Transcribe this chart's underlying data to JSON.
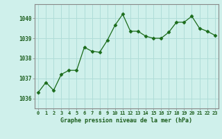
{
  "x": [
    0,
    1,
    2,
    3,
    4,
    5,
    6,
    7,
    8,
    9,
    10,
    11,
    12,
    13,
    14,
    15,
    16,
    17,
    18,
    19,
    20,
    21,
    22,
    23
  ],
  "y": [
    1036.3,
    1036.8,
    1036.4,
    1037.2,
    1037.4,
    1037.4,
    1038.55,
    1038.35,
    1038.3,
    1038.9,
    1039.65,
    1040.2,
    1039.35,
    1039.35,
    1039.1,
    1039.0,
    1039.0,
    1039.3,
    1039.8,
    1039.8,
    1040.1,
    1039.5,
    1039.35,
    1039.15
  ],
  "line_color": "#1a6b1a",
  "marker": "D",
  "marker_size": 2.5,
  "bg_color": "#cff0eb",
  "grid_color": "#b0ddd8",
  "border_color": "#888888",
  "xlabel": "Graphe pression niveau de la mer (hPa)",
  "xlabel_color": "#1a5c1a",
  "tick_color": "#1a5c1a",
  "ylim": [
    1035.5,
    1040.7
  ],
  "yticks": [
    1036,
    1037,
    1038,
    1039,
    1040
  ],
  "xlim": [
    -0.5,
    23.5
  ],
  "xticks": [
    0,
    1,
    2,
    3,
    4,
    5,
    6,
    7,
    8,
    9,
    10,
    11,
    12,
    13,
    14,
    15,
    16,
    17,
    18,
    19,
    20,
    21,
    22,
    23
  ]
}
